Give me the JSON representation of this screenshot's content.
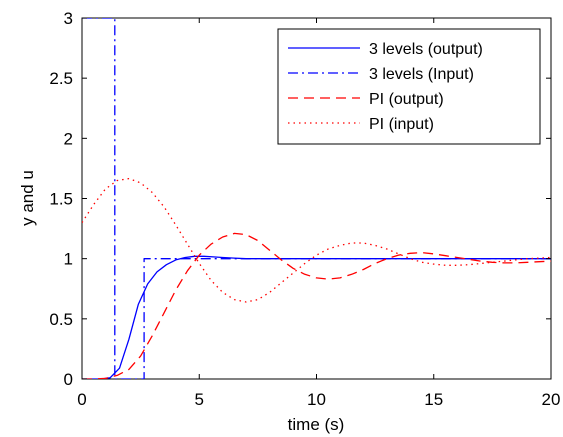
{
  "chart_data": {
    "type": "line",
    "xlabel": "time (s)",
    "ylabel": "y and u",
    "xlim": [
      0,
      20
    ],
    "ylim": [
      0,
      3
    ],
    "xticks": [
      0,
      5,
      10,
      15,
      20
    ],
    "yticks": [
      0,
      0.5,
      1,
      1.5,
      2,
      2.5,
      3
    ],
    "xtick_labels": [
      "0",
      "5",
      "10",
      "15",
      "20"
    ],
    "ytick_labels": [
      "0",
      "0.5",
      "1",
      "1.5",
      "2",
      "2.5",
      "3"
    ],
    "grid": false,
    "legend_position": "top-right",
    "series": [
      {
        "name": "3 levels (output)",
        "color": "#0000ff",
        "style": "solid",
        "x": [
          0,
          0.4,
          0.8,
          1.2,
          1.6,
          2.0,
          2.4,
          2.8,
          3.2,
          3.6,
          4.0,
          4.4,
          4.8,
          5.2,
          5.6,
          6.0,
          6.5,
          7.0,
          8.0,
          10,
          12,
          14,
          16,
          18,
          20
        ],
        "y": [
          0,
          0,
          0,
          0.01,
          0.09,
          0.33,
          0.62,
          0.79,
          0.89,
          0.95,
          0.99,
          1.01,
          1.02,
          1.02,
          1.015,
          1.01,
          1.005,
          1.0,
          1.0,
          1.0,
          1.0,
          1.0,
          1.0,
          1.0,
          1.0
        ]
      },
      {
        "name": "3 levels (Input)",
        "color": "#0000ff",
        "style": "dashdot",
        "x": [
          0,
          1.4,
          1.4,
          1.45,
          1.45,
          2.6,
          2.6,
          2.65,
          2.65,
          20
        ],
        "y": [
          3,
          3,
          0,
          0,
          0,
          0,
          0,
          0,
          1,
          1
        ]
      },
      {
        "name": "PI (output)",
        "color": "#ff0000",
        "style": "dashed",
        "x": [
          0,
          0.5,
          1.0,
          1.5,
          2.0,
          2.5,
          3.0,
          3.5,
          4.0,
          4.5,
          5.0,
          5.5,
          6.0,
          6.5,
          7.0,
          7.5,
          8.0,
          8.5,
          9.0,
          9.5,
          10.0,
          10.5,
          11.0,
          11.5,
          12.0,
          12.5,
          13.0,
          13.5,
          14.0,
          14.5,
          15.0,
          15.5,
          16.0,
          16.5,
          17.0,
          17.5,
          18.0,
          18.5,
          19.0,
          19.5,
          20.0
        ],
        "y": [
          0,
          0,
          0.005,
          0.03,
          0.08,
          0.19,
          0.36,
          0.55,
          0.74,
          0.9,
          1.03,
          1.12,
          1.18,
          1.21,
          1.2,
          1.15,
          1.07,
          0.99,
          0.92,
          0.87,
          0.84,
          0.83,
          0.84,
          0.87,
          0.91,
          0.96,
          1.0,
          1.03,
          1.045,
          1.05,
          1.04,
          1.025,
          1.01,
          0.995,
          0.98,
          0.97,
          0.965,
          0.965,
          0.97,
          0.975,
          0.98
        ]
      },
      {
        "name": "PI (input)",
        "color": "#ff0000",
        "style": "dotted",
        "x": [
          0,
          0.5,
          1.0,
          1.5,
          2.0,
          2.5,
          3.0,
          3.5,
          4.0,
          4.5,
          5.0,
          5.5,
          6.0,
          6.5,
          7.0,
          7.5,
          8.0,
          8.5,
          9.0,
          9.5,
          10.0,
          10.5,
          11.0,
          11.5,
          12.0,
          12.5,
          13.0,
          13.5,
          14.0,
          14.5,
          15.0,
          15.5,
          16.0,
          16.5,
          17.0,
          17.5,
          18.0,
          18.5,
          19.0,
          19.5,
          20.0
        ],
        "y": [
          1.3,
          1.45,
          1.58,
          1.65,
          1.665,
          1.63,
          1.55,
          1.43,
          1.28,
          1.12,
          0.96,
          0.82,
          0.72,
          0.66,
          0.64,
          0.66,
          0.72,
          0.8,
          0.88,
          0.96,
          1.03,
          1.08,
          1.11,
          1.13,
          1.13,
          1.11,
          1.08,
          1.04,
          1.0,
          0.97,
          0.955,
          0.945,
          0.945,
          0.95,
          0.96,
          0.97,
          0.98,
          0.99,
          1.0,
          1.005,
          1.01
        ]
      }
    ]
  }
}
